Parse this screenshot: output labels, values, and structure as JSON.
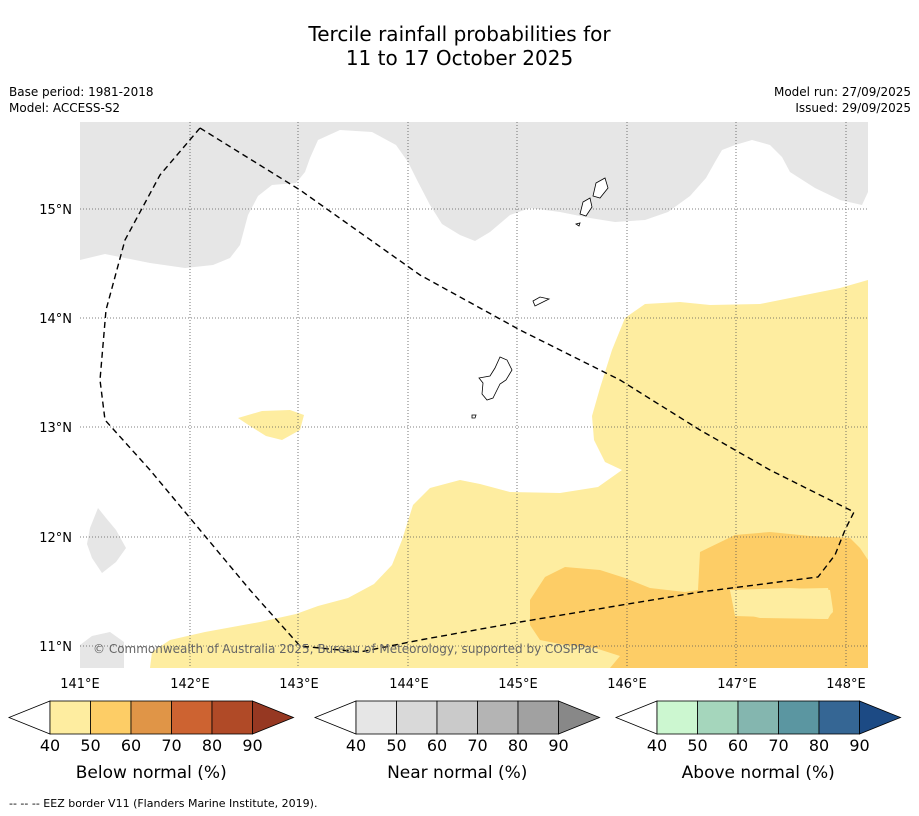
{
  "title": {
    "line1": "Tercile rainfall probabilities for",
    "line2": "11 to 17 October 2025"
  },
  "meta": {
    "base_period": "Base period: 1981-2018",
    "model": "Model: ACCESS-S2",
    "model_run": "Model run: 27/09/2025",
    "issued": "Issued: 29/09/2025"
  },
  "map": {
    "lat_labels": [
      "15°N",
      "14°N",
      "13°N",
      "12°N",
      "11°N"
    ],
    "lon_labels": [
      "141°E",
      "142°E",
      "143°E",
      "144°E",
      "145°E",
      "146°E",
      "147°E",
      "148°E"
    ],
    "copyright": "© Commonwealth of Australia 2025, Bureau of Meteorology, supported by COSPPac",
    "colors": {
      "near_40_50": "#e6e6e6",
      "below_40_50": "#feeda0",
      "below_50_60": "#fdcd66"
    }
  },
  "colorbars": [
    {
      "label": "Below normal (%)",
      "ticks": [
        "40",
        "50",
        "60",
        "70",
        "80",
        "90"
      ],
      "colors": [
        "#feeda0",
        "#fdcd66",
        "#e09547",
        "#cd6331",
        "#b04a27",
        "#963822"
      ]
    },
    {
      "label": "Near normal (%)",
      "ticks": [
        "40",
        "50",
        "60",
        "70",
        "80",
        "90"
      ],
      "colors": [
        "#e6e6e6",
        "#d9d9d9",
        "#cacaca",
        "#b4b4b4",
        "#a1a1a1",
        "#888888"
      ]
    },
    {
      "label": "Above normal (%)",
      "ticks": [
        "40",
        "50",
        "60",
        "70",
        "80",
        "90"
      ],
      "colors": [
        "#ccf7d0",
        "#a5d6bc",
        "#84b6af",
        "#5b96a1",
        "#356694",
        "#1c4a84"
      ]
    }
  ],
  "footer": "--  --  -- EEZ border V11 (Flanders Marine Institute, 2019)."
}
